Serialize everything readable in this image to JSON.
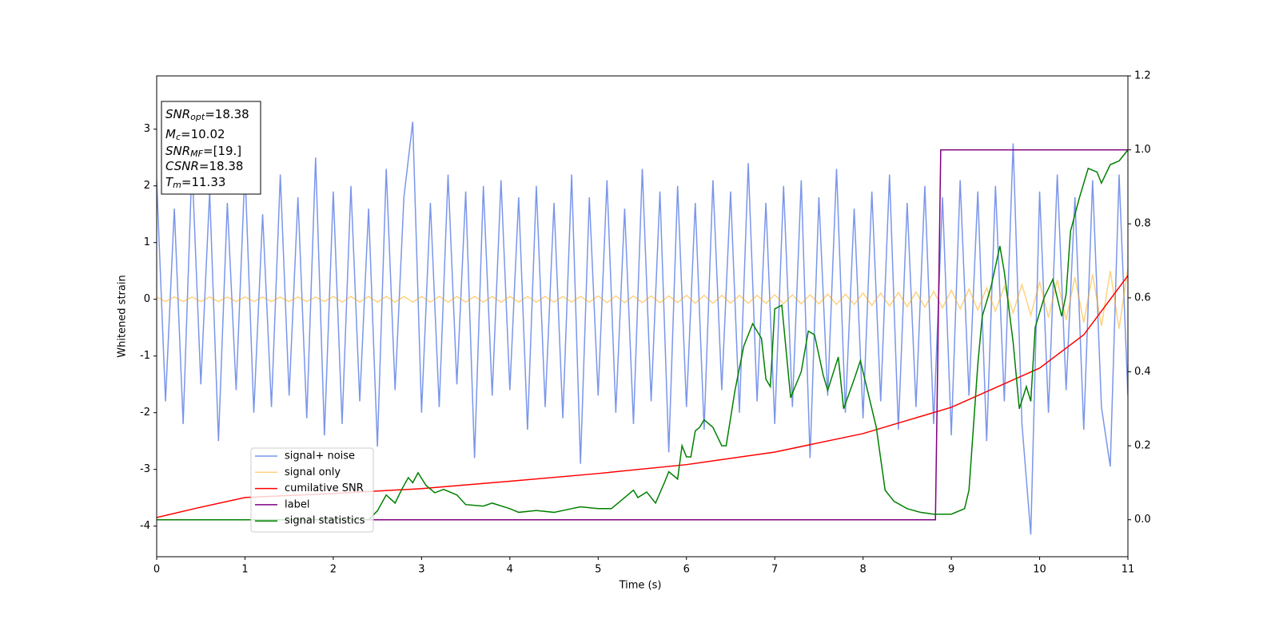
{
  "chart_data": {
    "type": "line",
    "xlabel": "Time (s)",
    "ylabel": "Whitened strain",
    "xlim": [
      0,
      11
    ],
    "ylim": [
      -4.54,
      3.94
    ],
    "y2lim": [
      -0.1,
      1.2
    ],
    "xticks": [
      0,
      1,
      2,
      3,
      4,
      5,
      6,
      7,
      8,
      9,
      10,
      11
    ],
    "yticks": [
      -4,
      -3,
      -2,
      -1,
      0,
      1,
      2,
      3
    ],
    "y2ticks": [
      {
        "value": 0,
        "label": "0.0"
      },
      0.2,
      0.4,
      0.6,
      0.8,
      {
        "value": 1,
        "label": "1.0"
      },
      1.2
    ],
    "legend": "lower left",
    "annotations": [
      {
        "base": "SNR",
        "sub": "opt",
        "text": "=18.38"
      },
      {
        "base": "M",
        "sub": "c",
        "text": "=10.02"
      },
      {
        "base": "SNR",
        "sub": "MF",
        "text": "=[19.]"
      },
      {
        "base": "CSNR",
        "sub": null,
        "text": "=18.38"
      },
      {
        "base": "T",
        "sub": "m",
        "text": "=11.33"
      }
    ],
    "x": [
      0,
      0.1,
      0.2,
      0.3,
      0.4,
      0.5,
      0.6,
      0.7,
      0.8,
      0.9,
      1,
      1.1,
      1.2,
      1.3,
      1.4,
      1.5,
      1.6,
      1.7,
      1.8,
      1.9,
      2,
      2.1,
      2.2,
      2.3,
      2.4,
      2.5,
      2.6,
      2.7,
      2.8,
      2.9,
      3,
      3.1,
      3.2,
      3.3,
      3.4,
      3.5,
      3.6,
      3.7,
      3.8,
      3.9,
      4,
      4.1,
      4.2,
      4.3,
      4.4,
      4.5,
      4.6,
      4.7,
      4.8,
      4.9,
      5,
      5.1,
      5.2,
      5.3,
      5.4,
      5.5,
      5.6,
      5.7,
      5.8,
      5.9,
      6,
      6.1,
      6.2,
      6.3,
      6.4,
      6.5,
      6.6,
      6.7,
      6.8,
      6.9,
      7,
      7.1,
      7.2,
      7.3,
      7.4,
      7.5,
      7.6,
      7.7,
      7.8,
      7.9,
      8,
      8.1,
      8.2,
      8.3,
      8.4,
      8.5,
      8.6,
      8.7,
      8.8,
      8.9,
      9,
      9.1,
      9.2,
      9.3,
      9.4,
      9.5,
      9.6,
      9.7,
      9.8,
      9.9,
      10,
      10.1,
      10.2,
      10.3,
      10.4,
      10.5,
      10.6,
      10.7,
      10.8,
      10.9,
      11
    ],
    "series": [
      {
        "name": "signal+ noise",
        "color": "#4169e1",
        "opacity": 0.7,
        "values": [
          2.1,
          -1.8,
          1.6,
          -2.2,
          2.4,
          -1.5,
          1.9,
          -2.5,
          1.7,
          -1.6,
          2.3,
          -2.0,
          1.5,
          -1.9,
          2.2,
          -1.7,
          1.8,
          -2.1,
          2.5,
          -2.4,
          1.9,
          -2.2,
          2.0,
          -1.8,
          1.6,
          -2.6,
          2.3,
          -1.6,
          1.8,
          3.13,
          -2.0,
          1.7,
          -1.9,
          2.2,
          -1.5,
          1.9,
          -2.8,
          2.0,
          -1.7,
          2.1,
          -1.6,
          1.8,
          -2.3,
          2.0,
          -1.9,
          1.7,
          -2.1,
          2.2,
          -2.9,
          1.8,
          -1.7,
          2.1,
          -2.0,
          1.6,
          -2.2,
          2.3,
          -1.8,
          1.9,
          -2.7,
          2.0,
          -1.9,
          1.7,
          -2.3,
          2.1,
          -1.6,
          1.9,
          -2.0,
          2.4,
          -1.8,
          1.7,
          -2.2,
          2.0,
          -1.9,
          2.1,
          -2.8,
          1.8,
          -1.7,
          2.3,
          -2.0,
          1.6,
          -2.1,
          1.9,
          -1.8,
          2.2,
          -2.3,
          1.7,
          -1.9,
          2.0,
          -2.2,
          1.8,
          -2.4,
          2.1,
          -1.7,
          1.9,
          -2.5,
          2.0,
          -1.8,
          2.75,
          -2.2,
          -4.15,
          1.9,
          -2.0,
          2.2,
          -1.6,
          1.8,
          -2.3,
          2.1,
          -1.9,
          -2.95,
          2.2,
          -1.7
        ]
      },
      {
        "name": "signal only",
        "color": "#ffa500",
        "opacity": 0.5,
        "values": [
          0.04,
          -0.04,
          0.04,
          -0.04,
          0.04,
          -0.04,
          0.04,
          -0.04,
          0.04,
          -0.04,
          0.04,
          -0.04,
          0.04,
          -0.04,
          0.04,
          -0.04,
          0.04,
          -0.04,
          0.04,
          -0.04,
          0.05,
          -0.05,
          0.05,
          -0.05,
          0.05,
          -0.05,
          0.05,
          -0.05,
          0.05,
          -0.05,
          0.05,
          -0.05,
          0.05,
          -0.05,
          0.05,
          -0.05,
          0.05,
          -0.05,
          0.05,
          -0.05,
          0.05,
          -0.05,
          0.05,
          -0.05,
          0.05,
          -0.05,
          0.05,
          -0.05,
          0.05,
          -0.05,
          0.06,
          -0.06,
          0.06,
          -0.06,
          0.06,
          -0.06,
          0.06,
          -0.06,
          0.06,
          -0.06,
          0.07,
          -0.07,
          0.07,
          -0.07,
          0.07,
          -0.07,
          0.07,
          -0.07,
          0.07,
          -0.07,
          0.08,
          -0.08,
          0.08,
          -0.08,
          0.08,
          -0.08,
          0.09,
          -0.09,
          0.09,
          -0.09,
          0.11,
          -0.11,
          0.11,
          -0.12,
          0.12,
          -0.13,
          0.13,
          -0.14,
          0.14,
          -0.15,
          0.16,
          -0.17,
          0.18,
          -0.19,
          0.2,
          -0.21,
          0.23,
          -0.24,
          0.26,
          -0.28,
          0.3,
          -0.32,
          0.34,
          -0.36,
          0.39,
          -0.41,
          0.44,
          -0.47,
          0.5,
          -0.52,
          0.55
        ]
      },
      {
        "name": "cumilative SNR",
        "color": "#ff0000",
        "axis": "y2",
        "x": [
          0,
          0.5,
          1,
          2,
          3,
          4,
          5,
          6,
          7,
          8,
          9,
          10,
          10.5,
          11
        ],
        "values": [
          0.006,
          0.034,
          0.06,
          0.071,
          0.084,
          0.104,
          0.125,
          0.149,
          0.183,
          0.233,
          0.304,
          0.41,
          0.5,
          0.66
        ]
      },
      {
        "name": "label",
        "color": "#800080",
        "axis": "y2",
        "x": [
          0,
          8.82,
          8.88,
          11
        ],
        "values": [
          0,
          0,
          1,
          1
        ]
      },
      {
        "name": "signal statistics",
        "color": "#008000",
        "axis": "y2",
        "x": [
          0,
          2.4,
          2.5,
          2.6,
          2.7,
          2.78,
          2.85,
          2.9,
          2.96,
          3.05,
          3.15,
          3.25,
          3.4,
          3.5,
          3.7,
          3.8,
          4.0,
          4.1,
          4.3,
          4.5,
          4.7,
          4.8,
          5.0,
          5.15,
          5.3,
          5.4,
          5.45,
          5.55,
          5.65,
          5.75,
          5.8,
          5.9,
          5.95,
          6.0,
          6.05,
          6.1,
          6.15,
          6.2,
          6.3,
          6.4,
          6.45,
          6.55,
          6.65,
          6.75,
          6.85,
          6.9,
          6.95,
          7.0,
          7.08,
          7.18,
          7.3,
          7.38,
          7.45,
          7.55,
          7.6,
          7.72,
          7.78,
          7.9,
          7.97,
          8.05,
          8.15,
          8.25,
          8.35,
          8.5,
          8.65,
          8.8,
          9.0,
          9.15,
          9.2,
          9.3,
          9.35,
          9.45,
          9.55,
          9.6,
          9.7,
          9.77,
          9.85,
          9.9,
          9.95,
          10.05,
          10.15,
          10.25,
          10.3,
          10.35,
          10.45,
          10.55,
          10.65,
          10.7,
          10.8,
          10.9,
          11
        ],
        "values": [
          0,
          0,
          0.024,
          0.067,
          0.045,
          0.084,
          0.114,
          0.1,
          0.127,
          0.093,
          0.073,
          0.082,
          0.067,
          0.041,
          0.037,
          0.045,
          0.03,
          0.02,
          0.025,
          0.02,
          0.03,
          0.035,
          0.03,
          0.03,
          0.06,
          0.08,
          0.06,
          0.075,
          0.045,
          0.1,
          0.13,
          0.11,
          0.2,
          0.17,
          0.17,
          0.24,
          0.25,
          0.27,
          0.25,
          0.2,
          0.2,
          0.35,
          0.47,
          0.53,
          0.49,
          0.38,
          0.36,
          0.57,
          0.58,
          0.33,
          0.4,
          0.51,
          0.5,
          0.39,
          0.35,
          0.44,
          0.3,
          0.38,
          0.43,
          0.35,
          0.25,
          0.08,
          0.05,
          0.03,
          0.02,
          0.015,
          0.015,
          0.03,
          0.08,
          0.42,
          0.55,
          0.63,
          0.74,
          0.67,
          0.48,
          0.3,
          0.36,
          0.32,
          0.52,
          0.6,
          0.65,
          0.55,
          0.61,
          0.78,
          0.87,
          0.95,
          0.94,
          0.91,
          0.96,
          0.97,
          1.0
        ]
      }
    ]
  }
}
